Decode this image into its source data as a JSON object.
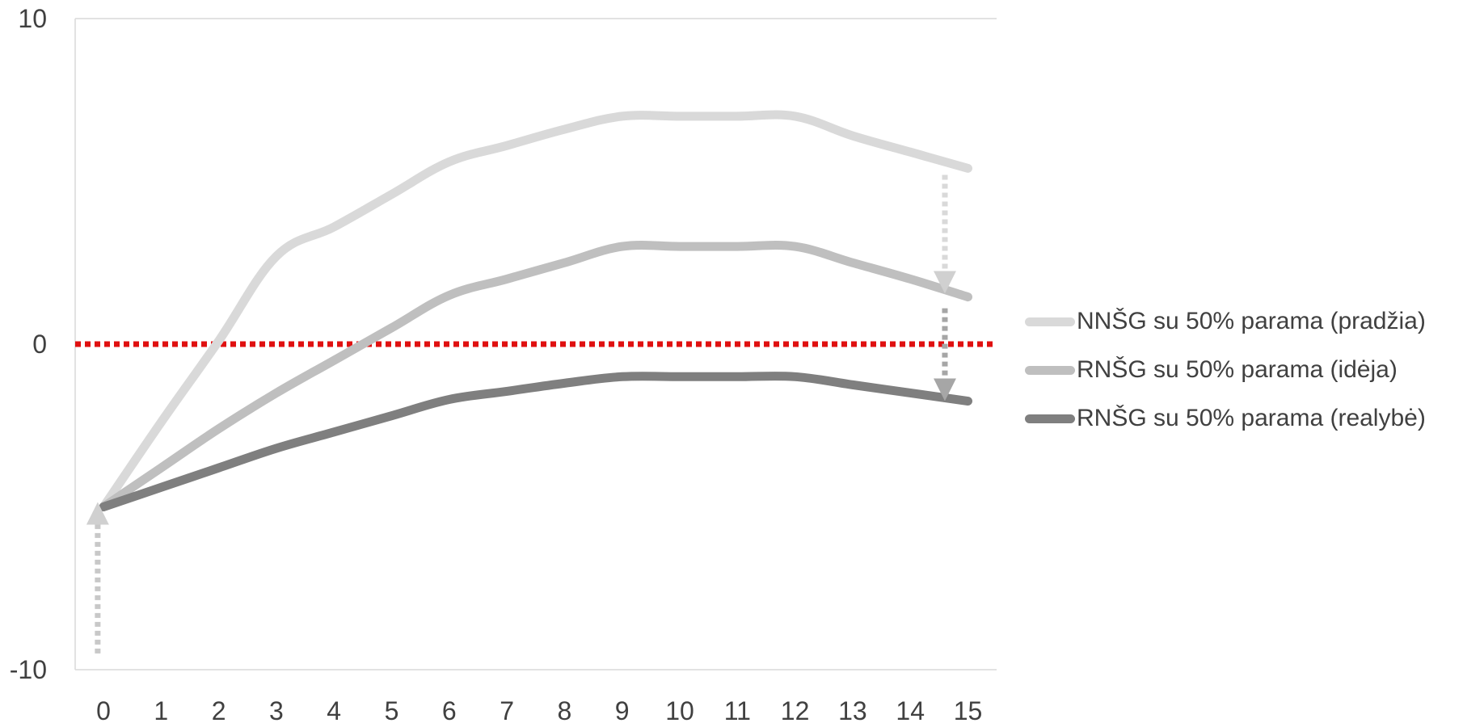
{
  "chart_data": {
    "type": "line",
    "x": [
      0,
      1,
      2,
      3,
      4,
      5,
      6,
      7,
      8,
      9,
      10,
      11,
      12,
      13,
      14,
      15
    ],
    "ylim": [
      -10,
      10
    ],
    "y_ticks": [
      {
        "value": 10,
        "label": "10"
      },
      {
        "value": 0,
        "label": "0"
      },
      {
        "value": -10,
        "label": "-10"
      }
    ],
    "x_ticks": [
      "0",
      "1",
      "2",
      "3",
      "4",
      "5",
      "6",
      "7",
      "8",
      "9",
      "10",
      "11",
      "12",
      "13",
      "14",
      "15"
    ],
    "grid": false,
    "legend_position": "right",
    "reference_line": {
      "y": 0,
      "color": "#e01010",
      "style": "dotted"
    },
    "series": [
      {
        "name": "NNŠG su 50% parama (pradžia)",
        "color": "#d9d9d9",
        "values": [
          -5,
          -2.4,
          0.1,
          2.7,
          3.6,
          4.6,
          5.6,
          6.1,
          6.6,
          7.0,
          7.0,
          7.0,
          7.0,
          6.4,
          5.9,
          5.4
        ]
      },
      {
        "name": "RNŠG su 50% parama (idėja)",
        "color": "#bfbfbf",
        "values": [
          -5,
          -3.8,
          -2.6,
          -1.5,
          -0.5,
          0.5,
          1.5,
          2.0,
          2.5,
          3.0,
          3.0,
          3.0,
          3.0,
          2.5,
          2.0,
          1.45
        ]
      },
      {
        "name": "RNŠG su 50% parama (realybė)",
        "color": "#7f7f7f",
        "values": [
          -5,
          -4.4,
          -3.8,
          -3.2,
          -2.7,
          -2.2,
          -1.7,
          -1.45,
          -1.2,
          -1.0,
          -1.0,
          -1.0,
          -1.0,
          -1.25,
          -1.5,
          -1.75
        ]
      }
    ],
    "annotations": [
      {
        "type": "arrow",
        "direction": "up",
        "x": -0.1,
        "y_from": -9.5,
        "y_to": -5.2,
        "color": "#c8c8c8"
      },
      {
        "type": "arrow",
        "direction": "down",
        "x": 14.6,
        "y_from": 5.2,
        "y_to": 1.9,
        "color": "#d9d9d9"
      },
      {
        "type": "arrow",
        "direction": "down",
        "x": 14.6,
        "y_from": 1.1,
        "y_to": -1.4,
        "color": "#a6a6a6"
      }
    ]
  }
}
